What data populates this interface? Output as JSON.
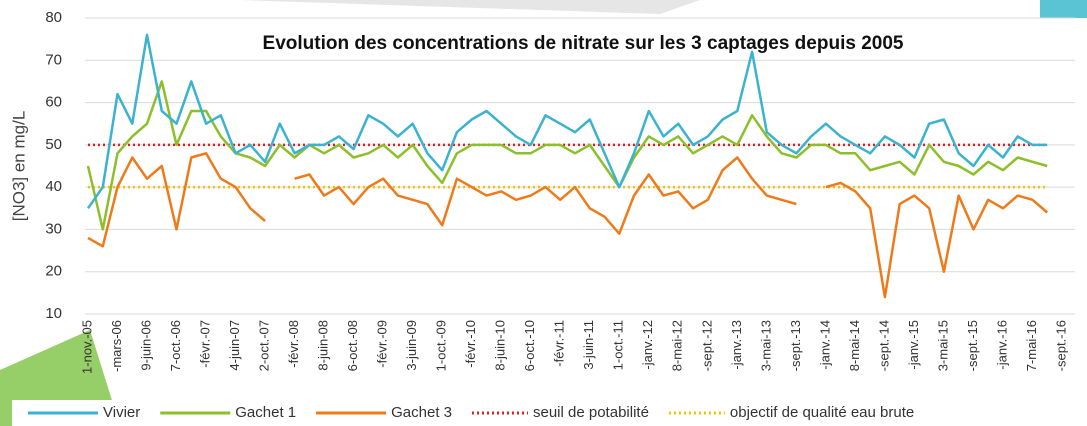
{
  "chart_data": {
    "type": "line",
    "title": "Evolution des concentrations de nitrate sur les 3 captages depuis 2005",
    "y_label": "[NO3] en mg/L",
    "categories": [
      "1-nov.-05",
      null,
      "-mars-06",
      null,
      "9-juin-06",
      null,
      "7-oct.-06",
      null,
      "-févr.-07",
      null,
      "4-juin-07",
      null,
      "2-oct.-07",
      null,
      "-févr.-08",
      null,
      "8-juin-08",
      null,
      "6-oct.-08",
      null,
      "-févr.-09",
      null,
      "3-juin-09",
      null,
      "1-oct.-09",
      null,
      "-févr.-10",
      null,
      "8-juin-10",
      null,
      "6-oct.-10",
      null,
      "-févr.-11",
      null,
      "3-juin-11",
      null,
      "1-oct.-11",
      null,
      "-janv.-12",
      null,
      "8-mai-12",
      null,
      "-sept.-12",
      null,
      "-janv.-13",
      null,
      "3-mai-13",
      null,
      "-sept.-13",
      null,
      "-janv.-14",
      null,
      "8-mai-14",
      null,
      "-sept.-14",
      null,
      "-janv.-15",
      null,
      "3-mai-15",
      null,
      "-sept.-15",
      null,
      "-janv.-16",
      null,
      "7-mai-16",
      null,
      "-sept.-16"
    ],
    "series": [
      {
        "name": "Vivier",
        "color": "#3bb3d0",
        "values": [
          35,
          40,
          62,
          55,
          76,
          58,
          55,
          65,
          55,
          57,
          48,
          50,
          46,
          55,
          48,
          50,
          50,
          52,
          49,
          57,
          55,
          52,
          55,
          48,
          44,
          53,
          56,
          58,
          55,
          52,
          50,
          57,
          55,
          53,
          56,
          48,
          40,
          48,
          58,
          52,
          55,
          50,
          52,
          56,
          58,
          72,
          53,
          50,
          48,
          52,
          55,
          52,
          50,
          48,
          52,
          50,
          47,
          55,
          56,
          48,
          45,
          50,
          47,
          52,
          50,
          50,
          null
        ]
      },
      {
        "name": "Gachet 1",
        "color": "#8dbf2a",
        "values": [
          45,
          30,
          48,
          52,
          55,
          65,
          50,
          58,
          58,
          52,
          48,
          47,
          45,
          50,
          47,
          50,
          48,
          50,
          47,
          48,
          50,
          47,
          50,
          45,
          41,
          48,
          50,
          50,
          50,
          48,
          48,
          50,
          50,
          48,
          50,
          45,
          40,
          47,
          52,
          50,
          52,
          48,
          50,
          52,
          50,
          57,
          52,
          48,
          47,
          50,
          50,
          48,
          48,
          44,
          45,
          46,
          43,
          50,
          46,
          45,
          43,
          46,
          44,
          47,
          46,
          45,
          null
        ]
      },
      {
        "name": "Gachet 3",
        "color": "#ee7a1a",
        "values": [
          28,
          26,
          40,
          47,
          42,
          45,
          30,
          47,
          48,
          42,
          40,
          35,
          32,
          null,
          42,
          43,
          38,
          40,
          36,
          40,
          42,
          38,
          37,
          36,
          31,
          42,
          40,
          38,
          39,
          37,
          38,
          40,
          37,
          40,
          35,
          33,
          29,
          38,
          43,
          38,
          39,
          35,
          37,
          44,
          47,
          42,
          38,
          37,
          36,
          null,
          40,
          41,
          39,
          35,
          14,
          36,
          38,
          35,
          20,
          38,
          30,
          37,
          35,
          38,
          37,
          34,
          null
        ]
      }
    ],
    "hlines": [
      {
        "name": "seuil de potabilité",
        "value": 50,
        "color": "#e02020"
      },
      {
        "name": "objectif de qualité eau brute",
        "value": 40,
        "color": "#f5c000"
      }
    ],
    "ylim": [
      10,
      80
    ],
    "yticks": [
      10,
      20,
      30,
      40,
      50,
      60,
      70,
      80
    ],
    "grid": true
  }
}
